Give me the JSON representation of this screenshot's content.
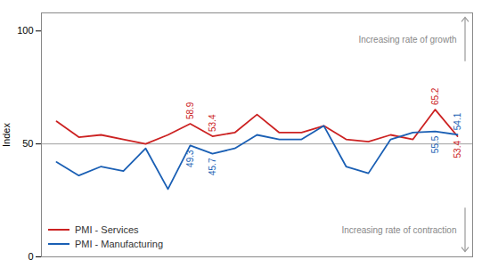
{
  "chart_data": {
    "type": "line",
    "ylabel": "Index",
    "categories": [
      null,
      null,
      null,
      null,
      null,
      null,
      null,
      null,
      null,
      null,
      null,
      null,
      null,
      null,
      null,
      null,
      null,
      null,
      null
    ],
    "series": [
      {
        "name": "PMI - Services",
        "color": "#cc2222",
        "values": [
          60,
          53,
          54,
          52,
          50,
          54,
          58.9,
          53.4,
          55,
          63,
          55,
          55,
          58,
          52,
          51,
          54,
          52,
          65.2,
          53.4
        ]
      },
      {
        "name": "PMI - Manufacturing",
        "color": "#1a5fb4",
        "values": [
          42,
          36,
          40,
          38,
          48,
          30,
          49.3,
          45.7,
          48,
          54,
          52,
          52,
          58,
          40,
          37,
          52,
          55,
          55.5,
          54.1
        ]
      }
    ],
    "ylim": [
      0,
      108
    ],
    "yticks": [
      0,
      50,
      100
    ],
    "grid": false,
    "legend": "lower left",
    "tick_labels": "y",
    "reference_lines": [
      {
        "y": 50
      }
    ],
    "annotations": [
      {
        "series": "PMI - Services",
        "x": 6,
        "y": 58.9,
        "text": "58.9"
      },
      {
        "series": "PMI - Services",
        "x": 7,
        "y": 53.4,
        "text": "53.4"
      },
      {
        "series": "PMI - Services",
        "x": 17,
        "y": 65.2,
        "text": "65.2"
      },
      {
        "series": "PMI - Services",
        "x": 18,
        "y": 53.4,
        "text": "53.4"
      },
      {
        "series": "PMI - Manufacturing",
        "x": 6,
        "y": 49.3,
        "text": "49.3"
      },
      {
        "series": "PMI - Manufacturing",
        "x": 7,
        "y": 45.7,
        "text": "45.7"
      },
      {
        "series": "PMI - Manufacturing",
        "x": 17,
        "y": 55.5,
        "text": "55.5"
      },
      {
        "series": "PMI - Manufacturing",
        "x": 18,
        "y": 54.1,
        "text": "54.1"
      }
    ],
    "notes": [
      {
        "text": "Increasing rate of growth",
        "direction": "up"
      },
      {
        "text": "Increasing rate of contraction",
        "direction": "down"
      }
    ]
  }
}
